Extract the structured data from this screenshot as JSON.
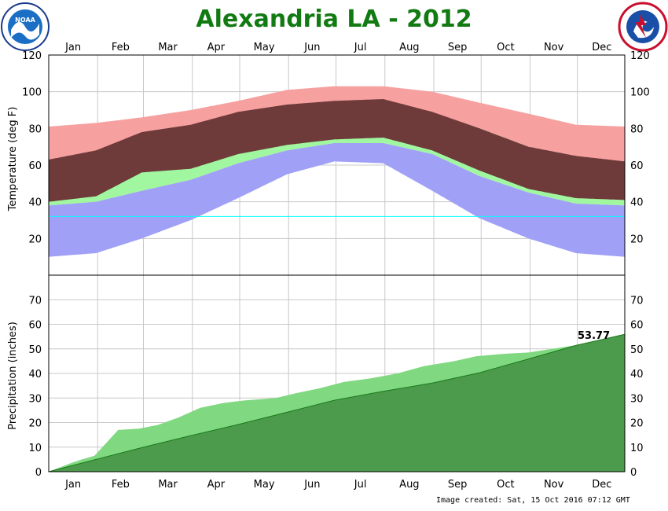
{
  "title": "Alexandria LA - 2012",
  "footer": "Image created: Sat, 15 Oct 2016 07:12 GMT",
  "logos": {
    "left": "NOAA",
    "right": "NATIONAL WEATHER SERVICE"
  },
  "months": [
    "Jan",
    "Feb",
    "Mar",
    "Apr",
    "May",
    "Jun",
    "Jul",
    "Aug",
    "Sep",
    "Oct",
    "Nov",
    "Dec"
  ],
  "colors": {
    "record_band": "#f7a0a0",
    "normal_band": "#a0f7a0",
    "low_band": "#a0a0f7",
    "actual": "#6e3a3a",
    "normal_precip": "#80d880",
    "actual_precip": "#4c9a4c",
    "title": "#127a12",
    "freeze_line": "#00ffff"
  },
  "chart_data": [
    {
      "type": "area",
      "ylabel": "Temperature (deg F)",
      "ylim": [
        0,
        120
      ],
      "yticks": [
        20,
        40,
        60,
        80,
        100,
        120
      ],
      "grid": true,
      "freeze_line_f": 32,
      "x_unit": "day of year",
      "series": [
        {
          "name": "record_high",
          "x": [
            1,
            31,
            60,
            91,
            121,
            152,
            182,
            213,
            244,
            274,
            305,
            335,
            366
          ],
          "values": [
            81,
            83,
            86,
            90,
            95,
            101,
            103,
            103,
            100,
            94,
            88,
            82,
            81
          ]
        },
        {
          "name": "normal_high",
          "x": [
            1,
            31,
            60,
            91,
            121,
            152,
            182,
            213,
            244,
            274,
            305,
            335,
            366
          ],
          "values": [
            59,
            61,
            68,
            75,
            83,
            89,
            92,
            93,
            88,
            80,
            70,
            62,
            59
          ]
        },
        {
          "name": "normal_low",
          "x": [
            1,
            31,
            60,
            91,
            121,
            152,
            182,
            213,
            244,
            274,
            305,
            335,
            366
          ],
          "values": [
            38,
            40,
            46,
            52,
            61,
            68,
            72,
            72,
            66,
            54,
            45,
            39,
            38
          ]
        },
        {
          "name": "record_low",
          "x": [
            1,
            31,
            60,
            91,
            121,
            152,
            182,
            213,
            244,
            274,
            305,
            335,
            366
          ],
          "values": [
            10,
            12,
            20,
            30,
            42,
            55,
            62,
            61,
            46,
            31,
            20,
            12,
            10
          ]
        },
        {
          "name": "actual_high",
          "x": [
            1,
            31,
            60,
            91,
            121,
            152,
            182,
            213,
            244,
            274,
            305,
            335,
            366
          ],
          "values": [
            63,
            68,
            78,
            82,
            89,
            93,
            95,
            96,
            89,
            80,
            70,
            65,
            62
          ]
        },
        {
          "name": "actual_low",
          "x": [
            1,
            31,
            60,
            91,
            121,
            152,
            182,
            213,
            244,
            274,
            305,
            335,
            366
          ],
          "values": [
            40,
            43,
            56,
            58,
            66,
            71,
            74,
            75,
            68,
            57,
            47,
            42,
            41
          ]
        }
      ]
    },
    {
      "type": "area",
      "ylabel": "Precipitation (inches)",
      "ylim": [
        0,
        80
      ],
      "yticks": [
        0,
        10,
        20,
        30,
        40,
        50,
        60,
        70
      ],
      "grid": true,
      "annotation": "53.77",
      "x_unit": "day of year",
      "series": [
        {
          "name": "normal_cumulative",
          "x": [
            1,
            31,
            60,
            91,
            121,
            152,
            182,
            213,
            244,
            274,
            305,
            335,
            366
          ],
          "values": [
            0,
            5.0,
            9.8,
            14.7,
            19.2,
            24.2,
            29.1,
            32.7,
            36.1,
            40.3,
            45.9,
            51.4,
            55.9
          ]
        },
        {
          "name": "actual_cumulative",
          "x": [
            1,
            15,
            22,
            30,
            45,
            58,
            70,
            83,
            97,
            112,
            125,
            145,
            158,
            173,
            188,
            205,
            222,
            239,
            258,
            272,
            290,
            305,
            320,
            335,
            345,
            355,
            366
          ],
          "values": [
            0,
            3.5,
            5,
            6.5,
            17,
            17.5,
            19,
            22,
            26,
            28,
            29,
            30,
            32,
            34,
            36.5,
            38,
            40,
            43,
            45,
            47,
            48,
            48.5,
            50,
            51.5,
            52.5,
            53.2,
            53.77
          ]
        }
      ]
    }
  ]
}
